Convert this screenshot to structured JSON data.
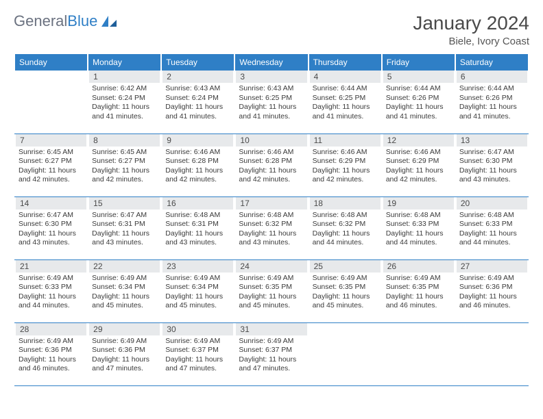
{
  "logo": {
    "t1": "General",
    "t2": "Blue"
  },
  "title": "January 2024",
  "location": "Biele, Ivory Coast",
  "colors": {
    "header_bg": "#2f7fc6",
    "header_text": "#ffffff",
    "daynum_bg": "#e7e9eb",
    "border": "#2f7fc6",
    "body_text": "#3a3a3a"
  },
  "days": [
    "Sunday",
    "Monday",
    "Tuesday",
    "Wednesday",
    "Thursday",
    "Friday",
    "Saturday"
  ],
  "weeks": [
    [
      {
        "n": "",
        "sr": "",
        "ss": "",
        "dl": ""
      },
      {
        "n": "1",
        "sr": "Sunrise: 6:42 AM",
        "ss": "Sunset: 6:24 PM",
        "dl": "Daylight: 11 hours and 41 minutes."
      },
      {
        "n": "2",
        "sr": "Sunrise: 6:43 AM",
        "ss": "Sunset: 6:24 PM",
        "dl": "Daylight: 11 hours and 41 minutes."
      },
      {
        "n": "3",
        "sr": "Sunrise: 6:43 AM",
        "ss": "Sunset: 6:25 PM",
        "dl": "Daylight: 11 hours and 41 minutes."
      },
      {
        "n": "4",
        "sr": "Sunrise: 6:44 AM",
        "ss": "Sunset: 6:25 PM",
        "dl": "Daylight: 11 hours and 41 minutes."
      },
      {
        "n": "5",
        "sr": "Sunrise: 6:44 AM",
        "ss": "Sunset: 6:26 PM",
        "dl": "Daylight: 11 hours and 41 minutes."
      },
      {
        "n": "6",
        "sr": "Sunrise: 6:44 AM",
        "ss": "Sunset: 6:26 PM",
        "dl": "Daylight: 11 hours and 41 minutes."
      }
    ],
    [
      {
        "n": "7",
        "sr": "Sunrise: 6:45 AM",
        "ss": "Sunset: 6:27 PM",
        "dl": "Daylight: 11 hours and 42 minutes."
      },
      {
        "n": "8",
        "sr": "Sunrise: 6:45 AM",
        "ss": "Sunset: 6:27 PM",
        "dl": "Daylight: 11 hours and 42 minutes."
      },
      {
        "n": "9",
        "sr": "Sunrise: 6:46 AM",
        "ss": "Sunset: 6:28 PM",
        "dl": "Daylight: 11 hours and 42 minutes."
      },
      {
        "n": "10",
        "sr": "Sunrise: 6:46 AM",
        "ss": "Sunset: 6:28 PM",
        "dl": "Daylight: 11 hours and 42 minutes."
      },
      {
        "n": "11",
        "sr": "Sunrise: 6:46 AM",
        "ss": "Sunset: 6:29 PM",
        "dl": "Daylight: 11 hours and 42 minutes."
      },
      {
        "n": "12",
        "sr": "Sunrise: 6:46 AM",
        "ss": "Sunset: 6:29 PM",
        "dl": "Daylight: 11 hours and 42 minutes."
      },
      {
        "n": "13",
        "sr": "Sunrise: 6:47 AM",
        "ss": "Sunset: 6:30 PM",
        "dl": "Daylight: 11 hours and 43 minutes."
      }
    ],
    [
      {
        "n": "14",
        "sr": "Sunrise: 6:47 AM",
        "ss": "Sunset: 6:30 PM",
        "dl": "Daylight: 11 hours and 43 minutes."
      },
      {
        "n": "15",
        "sr": "Sunrise: 6:47 AM",
        "ss": "Sunset: 6:31 PM",
        "dl": "Daylight: 11 hours and 43 minutes."
      },
      {
        "n": "16",
        "sr": "Sunrise: 6:48 AM",
        "ss": "Sunset: 6:31 PM",
        "dl": "Daylight: 11 hours and 43 minutes."
      },
      {
        "n": "17",
        "sr": "Sunrise: 6:48 AM",
        "ss": "Sunset: 6:32 PM",
        "dl": "Daylight: 11 hours and 43 minutes."
      },
      {
        "n": "18",
        "sr": "Sunrise: 6:48 AM",
        "ss": "Sunset: 6:32 PM",
        "dl": "Daylight: 11 hours and 44 minutes."
      },
      {
        "n": "19",
        "sr": "Sunrise: 6:48 AM",
        "ss": "Sunset: 6:33 PM",
        "dl": "Daylight: 11 hours and 44 minutes."
      },
      {
        "n": "20",
        "sr": "Sunrise: 6:48 AM",
        "ss": "Sunset: 6:33 PM",
        "dl": "Daylight: 11 hours and 44 minutes."
      }
    ],
    [
      {
        "n": "21",
        "sr": "Sunrise: 6:49 AM",
        "ss": "Sunset: 6:33 PM",
        "dl": "Daylight: 11 hours and 44 minutes."
      },
      {
        "n": "22",
        "sr": "Sunrise: 6:49 AM",
        "ss": "Sunset: 6:34 PM",
        "dl": "Daylight: 11 hours and 45 minutes."
      },
      {
        "n": "23",
        "sr": "Sunrise: 6:49 AM",
        "ss": "Sunset: 6:34 PM",
        "dl": "Daylight: 11 hours and 45 minutes."
      },
      {
        "n": "24",
        "sr": "Sunrise: 6:49 AM",
        "ss": "Sunset: 6:35 PM",
        "dl": "Daylight: 11 hours and 45 minutes."
      },
      {
        "n": "25",
        "sr": "Sunrise: 6:49 AM",
        "ss": "Sunset: 6:35 PM",
        "dl": "Daylight: 11 hours and 45 minutes."
      },
      {
        "n": "26",
        "sr": "Sunrise: 6:49 AM",
        "ss": "Sunset: 6:35 PM",
        "dl": "Daylight: 11 hours and 46 minutes."
      },
      {
        "n": "27",
        "sr": "Sunrise: 6:49 AM",
        "ss": "Sunset: 6:36 PM",
        "dl": "Daylight: 11 hours and 46 minutes."
      }
    ],
    [
      {
        "n": "28",
        "sr": "Sunrise: 6:49 AM",
        "ss": "Sunset: 6:36 PM",
        "dl": "Daylight: 11 hours and 46 minutes."
      },
      {
        "n": "29",
        "sr": "Sunrise: 6:49 AM",
        "ss": "Sunset: 6:36 PM",
        "dl": "Daylight: 11 hours and 47 minutes."
      },
      {
        "n": "30",
        "sr": "Sunrise: 6:49 AM",
        "ss": "Sunset: 6:37 PM",
        "dl": "Daylight: 11 hours and 47 minutes."
      },
      {
        "n": "31",
        "sr": "Sunrise: 6:49 AM",
        "ss": "Sunset: 6:37 PM",
        "dl": "Daylight: 11 hours and 47 minutes."
      },
      {
        "n": "",
        "sr": "",
        "ss": "",
        "dl": ""
      },
      {
        "n": "",
        "sr": "",
        "ss": "",
        "dl": ""
      },
      {
        "n": "",
        "sr": "",
        "ss": "",
        "dl": ""
      }
    ]
  ]
}
